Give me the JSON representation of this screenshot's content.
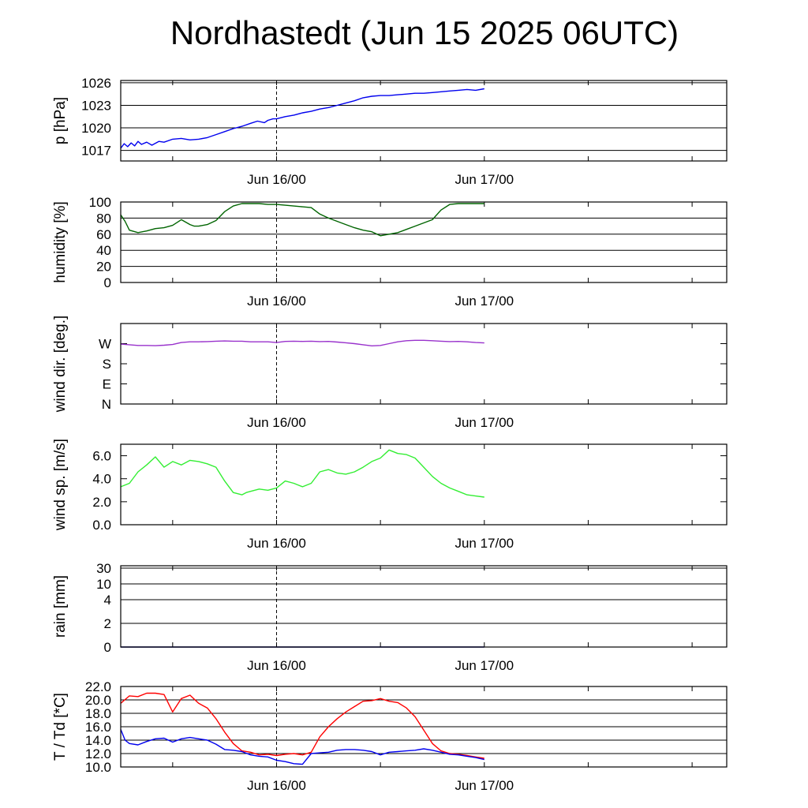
{
  "title": "Nordhastedt (Jun 15 2025 06UTC)",
  "chart_data": [
    {
      "type": "line",
      "ylabel": "p [hPa]",
      "ylim": [
        1015.6,
        1026.3
      ],
      "yticks": [
        "1017",
        "1020",
        "1023",
        "1026"
      ],
      "ytick_values": [
        1017,
        1020,
        1023,
        1026
      ],
      "grid": true,
      "xlim": [
        -18,
        52
      ],
      "xticks": [
        "Jun 16/00",
        "Jun 17/00"
      ],
      "xtick_values": [
        0,
        24
      ],
      "x_unit": "hours from Jun 16 00UTC",
      "series": [
        {
          "color": "#0000ee",
          "x": [
            -18,
            -17.6,
            -17.2,
            -16.8,
            -16.4,
            -16,
            -15.6,
            -15,
            -14.4,
            -13.6,
            -13,
            -12,
            -11,
            -10,
            -9,
            -8,
            -7,
            -6,
            -5,
            -4,
            -3,
            -2.2,
            -1.4,
            -1,
            -0.4,
            0,
            1,
            2,
            3,
            4,
            5,
            6,
            7,
            8,
            9,
            10,
            11,
            12,
            13,
            14,
            15,
            16,
            17,
            18,
            19,
            20,
            21,
            22,
            23,
            24
          ],
          "values": [
            1017.3,
            1017.9,
            1017.5,
            1018,
            1017.6,
            1018.2,
            1017.8,
            1018.1,
            1017.7,
            1018.2,
            1018.1,
            1018.5,
            1018.6,
            1018.4,
            1018.5,
            1018.7,
            1019.1,
            1019.5,
            1019.9,
            1020.2,
            1020.6,
            1020.9,
            1020.7,
            1021,
            1021.2,
            1021.2,
            1021.5,
            1021.7,
            1022,
            1022.2,
            1022.5,
            1022.7,
            1023,
            1023.3,
            1023.6,
            1024,
            1024.2,
            1024.3,
            1024.3,
            1024.4,
            1024.5,
            1024.6,
            1024.6,
            1024.7,
            1024.8,
            1024.9,
            1025,
            1025.1,
            1025,
            1025.2
          ]
        }
      ]
    },
    {
      "type": "line",
      "ylabel": "humidity [%]",
      "ylim": [
        0,
        100
      ],
      "yticks": [
        "0",
        "20",
        "40",
        "60",
        "80",
        "100"
      ],
      "ytick_values": [
        0,
        20,
        40,
        60,
        80,
        100
      ],
      "grid": true,
      "xlim": [
        -18,
        52
      ],
      "xticks": [
        "Jun 16/00",
        "Jun 17/00"
      ],
      "xtick_values": [
        0,
        24
      ],
      "series": [
        {
          "color": "#006400",
          "x": [
            -18,
            -17.5,
            -17,
            -16,
            -15,
            -14,
            -13,
            -12,
            -11,
            -10,
            -9.5,
            -9,
            -8,
            -7,
            -6,
            -5,
            -4,
            -3,
            -2,
            -1,
            0,
            1,
            2,
            3,
            4,
            5,
            6,
            7,
            8,
            9,
            10,
            11,
            12,
            13,
            14,
            15,
            16,
            17,
            18,
            19,
            20,
            21,
            22,
            23,
            24
          ],
          "values": [
            84,
            76,
            65,
            62,
            64,
            67,
            68,
            71,
            78,
            72,
            70,
            70,
            72,
            77,
            88,
            95,
            98,
            98,
            98,
            97,
            97,
            96,
            95,
            94,
            93,
            85,
            80,
            76,
            72,
            68,
            65,
            63,
            58,
            60,
            62,
            66,
            70,
            74,
            78,
            90,
            97,
            98,
            98,
            98,
            98
          ]
        }
      ]
    },
    {
      "type": "line",
      "ylabel": "wind dir. [deg.]",
      "ylim": [
        0,
        360
      ],
      "yticks": [
        "N",
        "E",
        "S",
        "W"
      ],
      "ytick_values": [
        0,
        90,
        180,
        270
      ],
      "grid": false,
      "xlim": [
        -18,
        52
      ],
      "xticks": [
        "Jun 16/00",
        "Jun 17/00"
      ],
      "xtick_values": [
        0,
        24
      ],
      "series": [
        {
          "color": "#9932cc",
          "x": [
            -18,
            -17,
            -16,
            -15,
            -14,
            -13,
            -12,
            -11,
            -10,
            -9,
            -8,
            -7,
            -6,
            -5,
            -4,
            -3,
            -2,
            -1,
            0,
            1,
            2,
            3,
            4,
            5,
            6,
            7,
            8,
            9,
            10,
            11,
            12,
            13,
            14,
            15,
            16,
            17,
            18,
            19,
            20,
            21,
            22,
            23,
            24
          ],
          "values": [
            268,
            265,
            262,
            262,
            261,
            263,
            266,
            275,
            278,
            278,
            279,
            281,
            282,
            281,
            281,
            278,
            278,
            278,
            275,
            280,
            281,
            280,
            281,
            279,
            280,
            277,
            274,
            270,
            265,
            260,
            262,
            270,
            278,
            283,
            285,
            285,
            283,
            281,
            279,
            280,
            278,
            275,
            273
          ]
        }
      ]
    },
    {
      "type": "line",
      "ylabel": "wind sp. [m/s]",
      "ylim": [
        0,
        7
      ],
      "yticks": [
        "0.0",
        "2.0",
        "4.0",
        "6.0"
      ],
      "ytick_values": [
        0,
        2,
        4,
        6
      ],
      "grid": false,
      "xlim": [
        -18,
        52
      ],
      "xticks": [
        "Jun 16/00",
        "Jun 17/00"
      ],
      "xtick_values": [
        0,
        24
      ],
      "series": [
        {
          "color": "#33ee33",
          "x": [
            -18,
            -17,
            -16,
            -15,
            -14,
            -13,
            -12,
            -11,
            -10,
            -9,
            -8,
            -7,
            -6,
            -5,
            -4,
            -3.5,
            -3,
            -2,
            -1,
            0,
            1,
            2,
            3,
            4,
            5,
            6,
            7,
            8,
            9,
            10,
            11,
            12,
            13,
            14,
            15,
            16,
            17,
            18,
            19,
            20,
            21,
            22,
            23,
            24
          ],
          "values": [
            3.3,
            3.6,
            4.6,
            5.2,
            5.9,
            5.0,
            5.5,
            5.2,
            5.6,
            5.5,
            5.3,
            5.0,
            3.8,
            2.8,
            2.6,
            2.8,
            2.9,
            3.1,
            3.0,
            3.2,
            3.8,
            3.6,
            3.3,
            3.6,
            4.6,
            4.8,
            4.5,
            4.4,
            4.6,
            5.0,
            5.5,
            5.8,
            6.5,
            6.2,
            6.1,
            5.8,
            5.0,
            4.2,
            3.6,
            3.2,
            2.9,
            2.6,
            2.5,
            2.4
          ]
        }
      ]
    },
    {
      "type": "line",
      "ylabel": "rain [mm]",
      "yscale": "nonlinear",
      "yticks": [
        "0",
        "2",
        "4",
        "10",
        "30"
      ],
      "ytick_values": [
        0,
        2,
        4,
        10,
        30
      ],
      "grid": true,
      "xlim": [
        -18,
        52
      ],
      "xticks": [
        "Jun 16/00",
        "Jun 17/00"
      ],
      "xtick_values": [
        0,
        24
      ],
      "series": [
        {
          "color": "#000080",
          "x": [
            -18,
            24
          ],
          "values": [
            0,
            0
          ]
        }
      ]
    },
    {
      "type": "line",
      "ylabel": "T / Td [*C]",
      "ylim": [
        10,
        22
      ],
      "yticks": [
        "10.0",
        "12.0",
        "14.0",
        "16.0",
        "18.0",
        "20.0",
        "22.0"
      ],
      "ytick_values": [
        10,
        12,
        14,
        16,
        18,
        20,
        22
      ],
      "grid": true,
      "xlim": [
        -18,
        52
      ],
      "xticks": [
        "Jun 16/00",
        "Jun 17/00"
      ],
      "xtick_values": [
        0,
        24
      ],
      "series": [
        {
          "color": "#ff0000",
          "x": [
            -18,
            -17,
            -16,
            -15,
            -14,
            -13,
            -12,
            -11,
            -10,
            -9,
            -8,
            -7,
            -6,
            -5,
            -4,
            -3,
            -2,
            -1,
            0,
            1,
            2,
            3,
            4,
            5,
            6,
            7,
            8,
            9,
            10,
            11,
            12,
            13,
            14,
            15,
            16,
            17,
            18,
            19,
            20,
            21,
            22,
            23,
            24
          ],
          "values": [
            19.5,
            20.6,
            20.5,
            21,
            21,
            20.8,
            18.2,
            20.2,
            20.7,
            19.5,
            18.8,
            17.2,
            15.2,
            13.5,
            12.4,
            12.2,
            11.8,
            11.9,
            11.7,
            11.9,
            12,
            11.8,
            12.2,
            14.5,
            16,
            17.2,
            18.2,
            19,
            19.8,
            19.9,
            20.2,
            19.8,
            19.6,
            18.8,
            17.5,
            15.5,
            13.5,
            12.4,
            12,
            11.9,
            11.7,
            11.5,
            11.3
          ]
        },
        {
          "color": "#0000ee",
          "x": [
            -18,
            -17.5,
            -17,
            -16,
            -15,
            -14,
            -13,
            -12,
            -11,
            -10,
            -9,
            -8,
            -7,
            -6,
            -5,
            -4,
            -3,
            -2,
            -1,
            0,
            1,
            2,
            3,
            4,
            5,
            6,
            7,
            8,
            9,
            10,
            11,
            12,
            13,
            14,
            15,
            16,
            17,
            18,
            19,
            20,
            21,
            22,
            23,
            24
          ],
          "values": [
            15.6,
            14,
            13.5,
            13.3,
            13.8,
            14.2,
            14.3,
            13.7,
            14.2,
            14.4,
            14.2,
            14,
            13.4,
            12.6,
            12.5,
            12.3,
            11.8,
            11.6,
            11.5,
            11,
            10.8,
            10.5,
            10.4,
            12,
            12.1,
            12.2,
            12.5,
            12.6,
            12.6,
            12.5,
            12.3,
            11.8,
            12.2,
            12.3,
            12.4,
            12.5,
            12.7,
            12.5,
            12.2,
            11.9,
            11.8,
            11.6,
            11.4,
            11.1
          ]
        }
      ]
    }
  ]
}
